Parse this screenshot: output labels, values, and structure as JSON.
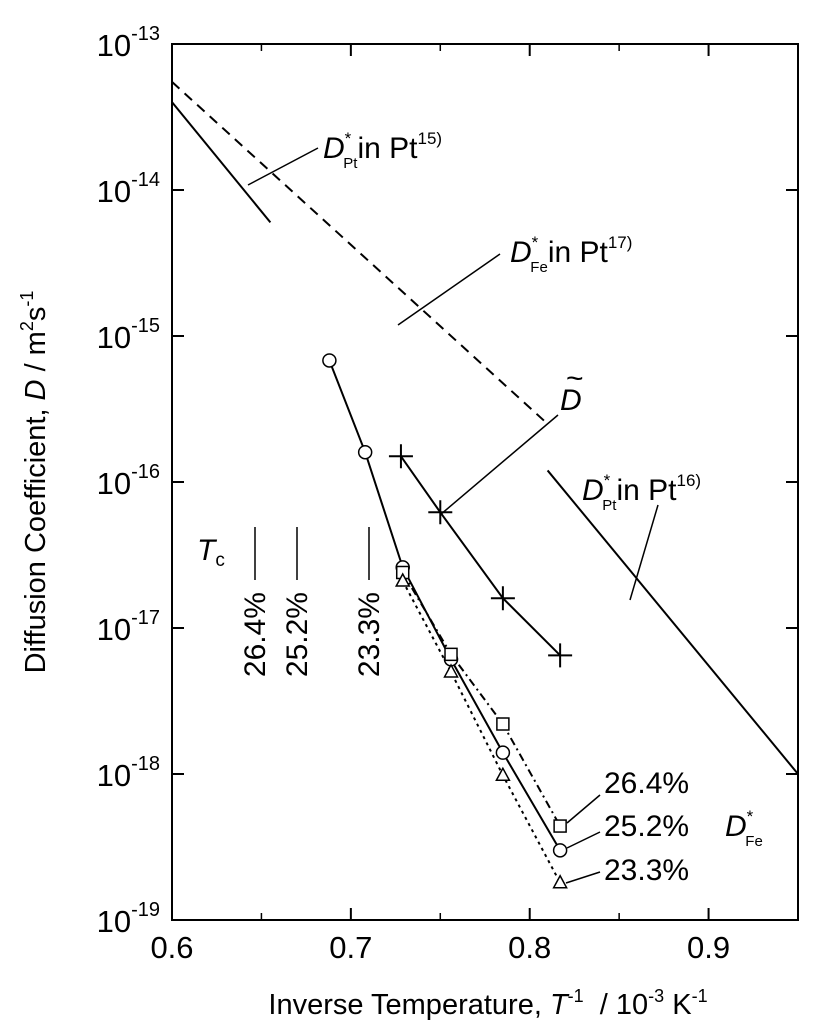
{
  "chart_data": {
    "type": "line",
    "xlabel": {
      "prefix": "Inverse Temperature, ",
      "var": "T",
      "exp": "-1",
      "unit_mid": "  / 10",
      "unit_exp": "-3",
      "unit_end": " K",
      "unit_end_exp": "-1"
    },
    "ylabel": {
      "prefix": "Diffusion Coefficient, ",
      "var": "D",
      "unit_mid": " / m",
      "m_exp": "2",
      "s": "s",
      "s_exp": "-1"
    },
    "xlim": [
      0.6,
      0.95
    ],
    "ylim_log10": [
      -19,
      -13
    ],
    "y_scale": "log",
    "x_ticks": [
      0.6,
      0.7,
      0.8,
      0.9
    ],
    "x_tick_labels": [
      "0.6",
      "0.7",
      "0.8",
      "0.9"
    ],
    "y_ticks_log10": [
      -19,
      -18,
      -17,
      -16,
      -15,
      -14,
      -13
    ],
    "y_tick_base": "10",
    "y_tick_exponents": [
      "-19",
      "-18",
      "-17",
      "-16",
      "-15",
      "-14",
      "-13"
    ],
    "reference_lines": [
      {
        "id": "pt15",
        "style": "solid",
        "x": [
          0.6,
          0.655
        ],
        "y": [
          4e-14,
          6e-15
        ],
        "label": {
          "sym": "D",
          "star": "*",
          "sub": "Pt",
          "text": "in Pt",
          "ref": "15)"
        }
      },
      {
        "id": "fe17",
        "style": "dashed",
        "x": [
          0.6,
          0.81
        ],
        "y": [
          5.5e-14,
          2.5e-16
        ],
        "label": {
          "sym": "D",
          "star": "*",
          "sub": "Fe",
          "text": "in Pt",
          "ref": "17)"
        }
      },
      {
        "id": "pt16",
        "style": "solid",
        "x": [
          0.81,
          0.95
        ],
        "y": [
          1.2e-16,
          1e-18
        ],
        "label": {
          "sym": "D",
          "star": "*",
          "sub": "Pt",
          "text": "in Pt",
          "ref": "16)"
        }
      }
    ],
    "series": [
      {
        "id": "interdiffusion",
        "marker": "plus",
        "line": "solid",
        "x": [
          0.728,
          0.75,
          0.785,
          0.817
        ],
        "y": [
          1.5e-16,
          6.2e-17,
          1.6e-17,
          6.5e-18
        ]
      },
      {
        "id": "fe252",
        "name": "25.2%",
        "marker": "circle",
        "line": "solid",
        "x": [
          0.688,
          0.708,
          0.729,
          0.756,
          0.785,
          0.817
        ],
        "y": [
          6.8e-16,
          1.6e-16,
          2.6e-17,
          6.1e-18,
          1.4e-18,
          3e-19
        ]
      },
      {
        "id": "fe264",
        "name": "26.4%",
        "marker": "square",
        "line": "dashdot",
        "x": [
          0.729,
          0.756,
          0.785,
          0.817
        ],
        "y": [
          2.4e-17,
          6.6e-18,
          2.2e-18,
          4.4e-19
        ]
      },
      {
        "id": "fe233",
        "name": "23.3%",
        "marker": "triangle",
        "line": "dotted",
        "x": [
          0.729,
          0.756,
          0.785,
          0.817
        ],
        "y": [
          2.1e-17,
          5e-18,
          9.8e-19,
          1.8e-19
        ]
      }
    ],
    "dtilde_label": "D",
    "dtilde_mark": "~",
    "fe_star_label": {
      "sym": "D",
      "star": "*",
      "sub": "Fe"
    },
    "tc_label": {
      "sym": "T",
      "sub": "c"
    },
    "tc_markers": [
      {
        "label": "26.4%",
        "x": 0.655
      },
      {
        "label": "25.2%",
        "x": 0.677
      },
      {
        "label": "23.3%",
        "x": 0.722
      }
    ]
  }
}
